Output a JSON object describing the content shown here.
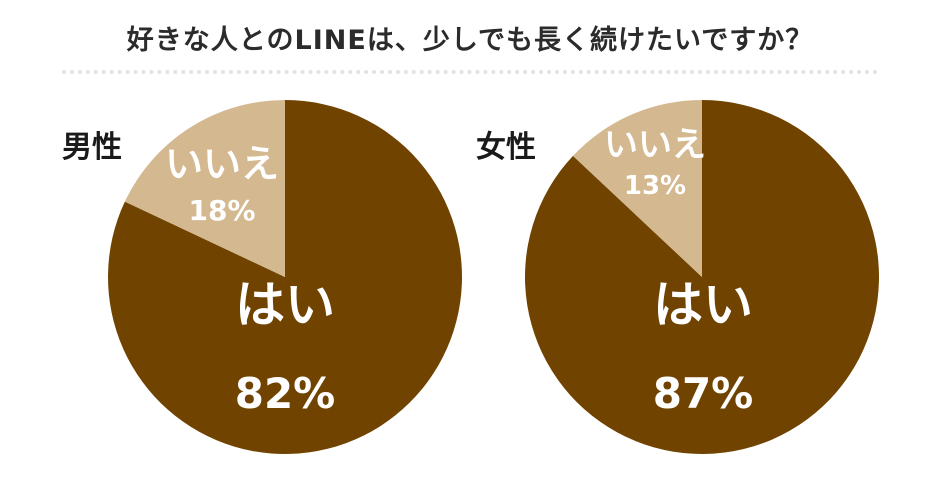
{
  "title": "好きな人とのLINEは、少しでも長く続けたいですか？",
  "colors": {
    "yes": "#704400",
    "no": "#d4b890",
    "text_light": "#ffffff"
  },
  "chart_data": [
    {
      "type": "pie",
      "group_label": "男性",
      "slices": [
        {
          "label": "はい",
          "value": 82,
          "value_label": "82%"
        },
        {
          "label": "いいえ",
          "value": 18,
          "value_label": "18%"
        }
      ]
    },
    {
      "type": "pie",
      "group_label": "女性",
      "slices": [
        {
          "label": "はい",
          "value": 87,
          "value_label": "87%"
        },
        {
          "label": "いいえ",
          "value": 13,
          "value_label": "13%"
        }
      ]
    }
  ]
}
